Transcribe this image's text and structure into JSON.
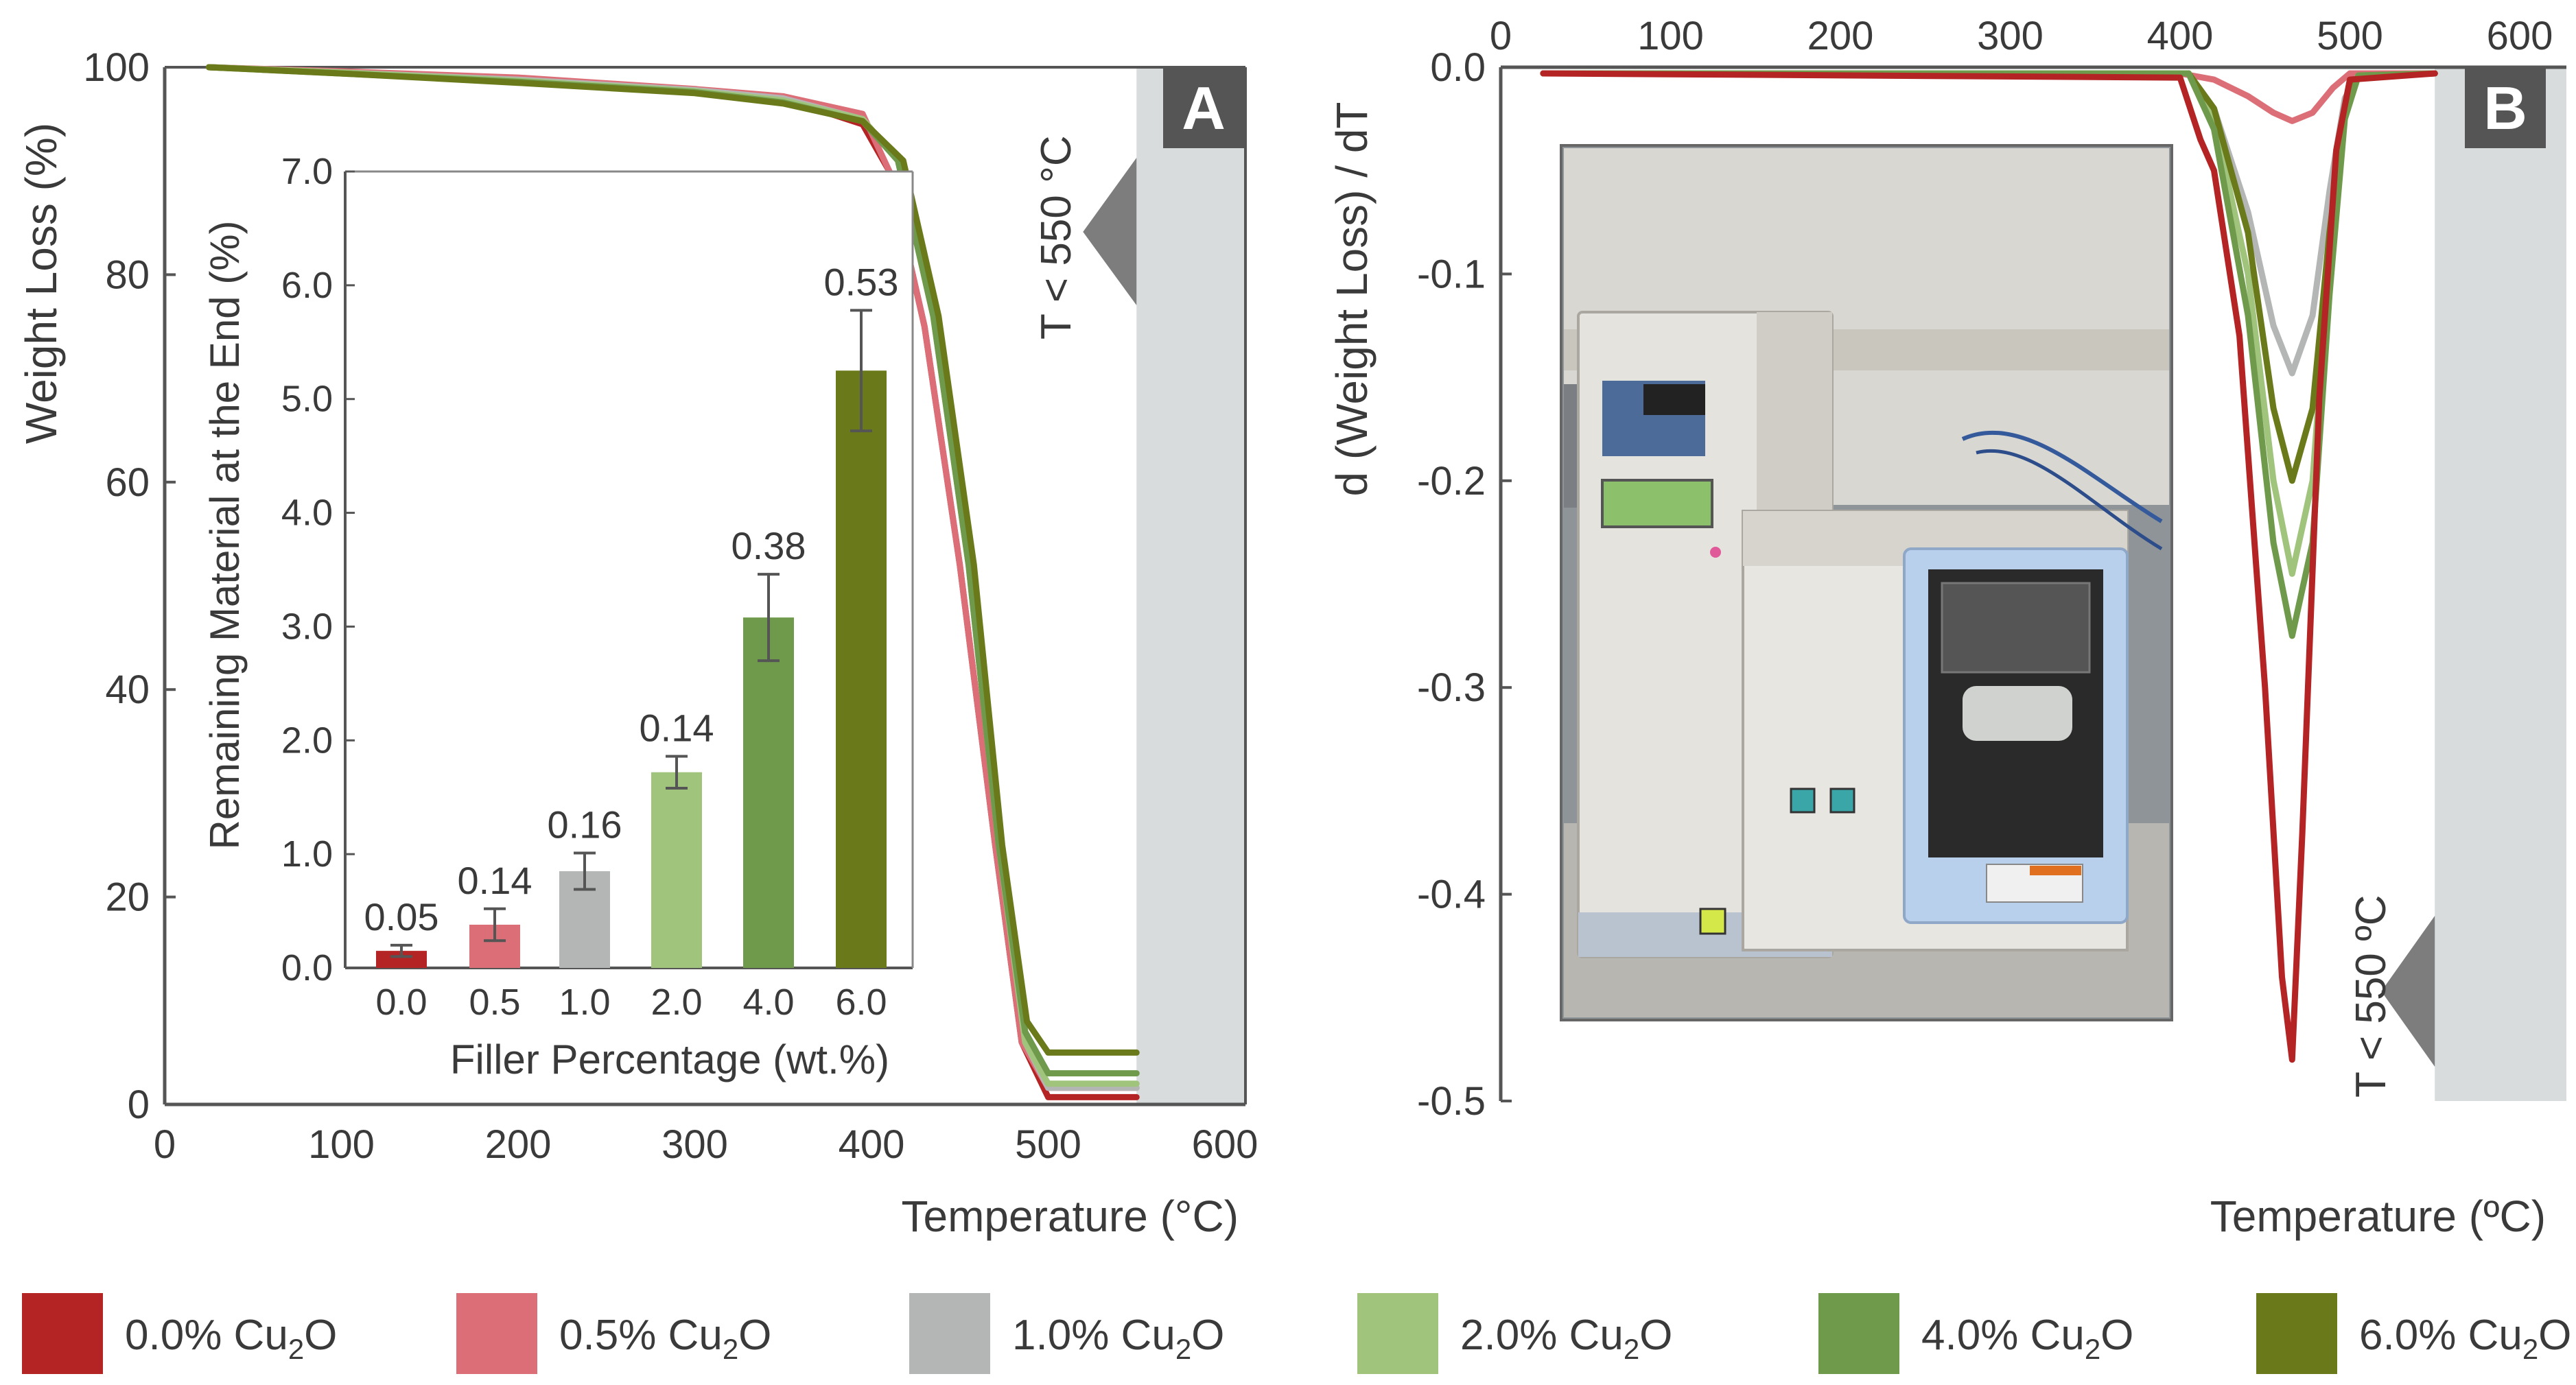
{
  "colors": {
    "c0": "#b52424",
    "c05": "#dc6e78",
    "c1": "#b4b6b5",
    "c2": "#a0c47c",
    "c4": "#6f9a4c",
    "c6": "#6a7a1a",
    "axis": "#555555",
    "band": "#d9dcdc",
    "panelBox": "#555555"
  },
  "legend": [
    {
      "id": "s0",
      "prefix": "0.0% Cu",
      "sub": "2",
      "suffix": "O",
      "color": "#b52424"
    },
    {
      "id": "s05",
      "prefix": "0.5% Cu",
      "sub": "2",
      "suffix": "O",
      "color": "#dc6e78"
    },
    {
      "id": "s1",
      "prefix": "1.0% Cu",
      "sub": "2",
      "suffix": "O",
      "color": "#b4b6b5"
    },
    {
      "id": "s2",
      "prefix": "2.0% Cu",
      "sub": "2",
      "suffix": "O",
      "color": "#a0c47c"
    },
    {
      "id": "s4",
      "prefix": "4.0% Cu",
      "sub": "2",
      "suffix": "O",
      "color": "#6f9a4c"
    },
    {
      "id": "s6",
      "prefix": "6.0% Cu",
      "sub": "2",
      "suffix": "O",
      "color": "#6a7a1a"
    }
  ],
  "chart_data": [
    {
      "panel": "A",
      "type": "line",
      "xlabel": "Temperature (°C)",
      "ylabel": "Weight Loss (%)",
      "xlim": [
        0,
        600
      ],
      "ylim": [
        0,
        100
      ],
      "xticks": [
        0,
        100,
        200,
        300,
        400,
        500,
        600
      ],
      "yticks": [
        0,
        20,
        40,
        60,
        80,
        100
      ],
      "annotation": "T < 550 °C",
      "series": [
        {
          "key": "s0",
          "color": "#b52424",
          "x": [
            25,
            100,
            200,
            300,
            350,
            395,
            410,
            430,
            450,
            470,
            485,
            500,
            550
          ],
          "y": [
            100,
            99.5,
            98.8,
            97.8,
            97,
            94.5,
            90,
            75,
            52,
            25,
            6,
            0.7,
            0.7
          ]
        },
        {
          "key": "s05",
          "color": "#dc6e78",
          "x": [
            25,
            100,
            200,
            300,
            350,
            395,
            410,
            430,
            450,
            470,
            485,
            500,
            550
          ],
          "y": [
            100,
            99.6,
            99,
            97.9,
            97.2,
            95.5,
            90,
            75,
            52,
            25,
            6,
            1.6,
            1.6
          ]
        },
        {
          "key": "s1",
          "color": "#b4b6b5",
          "x": [
            25,
            100,
            200,
            300,
            350,
            395,
            415,
            435,
            455,
            472,
            487,
            500,
            550
          ],
          "y": [
            100,
            99.5,
            98.8,
            97.8,
            97,
            95,
            91,
            76,
            52,
            25,
            6,
            1.6,
            1.6
          ]
        },
        {
          "key": "s2",
          "color": "#a0c47c",
          "x": [
            25,
            100,
            200,
            300,
            350,
            395,
            415,
            435,
            455,
            472,
            487,
            500,
            550
          ],
          "y": [
            100,
            99.5,
            98.7,
            97.7,
            96.8,
            95,
            91,
            76,
            52,
            25,
            6,
            2,
            2
          ]
        },
        {
          "key": "s4",
          "color": "#6f9a4c",
          "x": [
            25,
            100,
            200,
            300,
            350,
            395,
            415,
            435,
            455,
            472,
            487,
            500,
            550
          ],
          "y": [
            100,
            99.4,
            98.6,
            97.6,
            96.6,
            94.8,
            91,
            76,
            52,
            25,
            7,
            3,
            3
          ]
        },
        {
          "key": "s6",
          "color": "#6a7a1a",
          "x": [
            25,
            100,
            200,
            300,
            350,
            395,
            418,
            438,
            458,
            474,
            488,
            500,
            550
          ],
          "y": [
            100,
            99.4,
            98.5,
            97.5,
            96.5,
            94.8,
            91,
            76,
            52,
            25,
            8,
            5,
            5
          ]
        }
      ]
    },
    {
      "panel": "A-inset",
      "type": "bar",
      "xlabel": "Filler Percentage (wt.%)",
      "ylabel": "Remaining Material at the End (%)",
      "categories": [
        "0.0",
        "0.5",
        "1.0",
        "2.0",
        "4.0",
        "6.0"
      ],
      "values": [
        0.15,
        0.38,
        0.85,
        1.72,
        3.08,
        5.25
      ],
      "errors": [
        0.05,
        0.14,
        0.16,
        0.14,
        0.38,
        0.53
      ],
      "error_labels": [
        "0.05",
        "0.14",
        "0.16",
        "0.14",
        "0.38",
        "0.53"
      ],
      "colors": [
        "#b52424",
        "#dc6e78",
        "#b4b6b5",
        "#a0c47c",
        "#6f9a4c",
        "#6a7a1a"
      ],
      "ylim": [
        0,
        7
      ],
      "yticks": [
        "0.0",
        "1.0",
        "2.0",
        "3.0",
        "4.0",
        "5.0",
        "6.0",
        "7.0"
      ]
    },
    {
      "panel": "B",
      "type": "line",
      "xlabel": "Temperature (ºC)",
      "ylabel": "d (Weight Loss) / dT",
      "xlim": [
        0,
        600
      ],
      "ylim": [
        -0.5,
        0.0
      ],
      "xticks": [
        0,
        100,
        200,
        300,
        400,
        500,
        600
      ],
      "yticks": [
        "0.0",
        "-0.1",
        "-0.2",
        "-0.3",
        "-0.4",
        "-0.5"
      ],
      "annotation": "T < 550 ºC",
      "series": [
        {
          "key": "s05",
          "color": "#dc6e78",
          "x": [
            25,
            400,
            420,
            440,
            455,
            466,
            478,
            490,
            500,
            550
          ],
          "y": [
            -0.003,
            -0.003,
            -0.006,
            -0.014,
            -0.022,
            -0.026,
            -0.022,
            -0.01,
            -0.003,
            -0.003
          ]
        },
        {
          "key": "s1",
          "color": "#b4b6b5",
          "x": [
            25,
            405,
            420,
            440,
            455,
            466,
            478,
            488,
            497,
            505,
            550
          ],
          "y": [
            -0.003,
            -0.003,
            -0.02,
            -0.07,
            -0.125,
            -0.148,
            -0.12,
            -0.06,
            -0.015,
            -0.004,
            -0.003
          ]
        },
        {
          "key": "s2",
          "color": "#a0c47c",
          "x": [
            25,
            405,
            420,
            440,
            455,
            466,
            478,
            488,
            497,
            505,
            550
          ],
          "y": [
            -0.003,
            -0.003,
            -0.025,
            -0.1,
            -0.2,
            -0.245,
            -0.2,
            -0.09,
            -0.02,
            -0.004,
            -0.003
          ]
        },
        {
          "key": "s6",
          "color": "#6a7a1a",
          "x": [
            25,
            405,
            420,
            440,
            455,
            466,
            478,
            488,
            497,
            505,
            550
          ],
          "y": [
            -0.003,
            -0.003,
            -0.02,
            -0.08,
            -0.165,
            -0.2,
            -0.165,
            -0.08,
            -0.02,
            -0.004,
            -0.003
          ]
        },
        {
          "key": "s4",
          "color": "#6f9a4c",
          "x": [
            25,
            405,
            420,
            440,
            455,
            466,
            478,
            488,
            497,
            505,
            550
          ],
          "y": [
            -0.003,
            -0.003,
            -0.03,
            -0.12,
            -0.23,
            -0.275,
            -0.23,
            -0.11,
            -0.025,
            -0.004,
            -0.003
          ]
        },
        {
          "key": "s0",
          "color": "#b52424",
          "x": [
            25,
            400,
            412,
            420,
            435,
            450,
            460,
            466,
            472,
            482,
            492,
            500,
            550
          ],
          "y": [
            -0.003,
            -0.005,
            -0.035,
            -0.05,
            -0.13,
            -0.3,
            -0.44,
            -0.48,
            -0.37,
            -0.16,
            -0.04,
            -0.006,
            -0.003
          ]
        }
      ]
    }
  ]
}
